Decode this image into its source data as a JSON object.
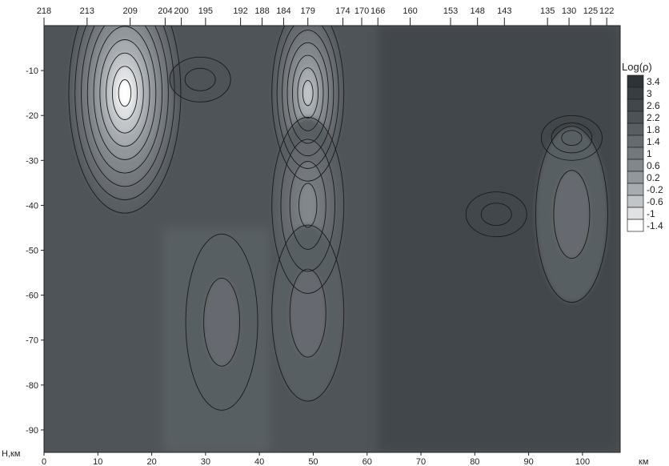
{
  "chart_data": {
    "type": "heatmap",
    "title": "",
    "xlabel": "км",
    "ylabel": "H,км",
    "xlim": [
      0,
      107
    ],
    "ylim": [
      -95,
      0
    ],
    "x_ticks": [
      0,
      10,
      20,
      30,
      40,
      50,
      60,
      70,
      80,
      90,
      100
    ],
    "y_ticks": [
      -10,
      -20,
      -30,
      -40,
      -50,
      -60,
      -70,
      -80,
      -90
    ],
    "top_axis_labels": [
      {
        "label": "218",
        "x": 0
      },
      {
        "label": "213",
        "x": 8
      },
      {
        "label": "209",
        "x": 16
      },
      {
        "label": "204",
        "x": 22.5
      },
      {
        "label": "200",
        "x": 25.5
      },
      {
        "label": "195",
        "x": 30
      },
      {
        "label": "192",
        "x": 36.5
      },
      {
        "label": "188",
        "x": 40.5
      },
      {
        "label": "184",
        "x": 44.5
      },
      {
        "label": "179",
        "x": 49
      },
      {
        "label": "174",
        "x": 55.5
      },
      {
        "label": "170",
        "x": 59
      },
      {
        "label": "166",
        "x": 62
      },
      {
        "label": "160",
        "x": 68
      },
      {
        "label": "153",
        "x": 75.5
      },
      {
        "label": "148",
        "x": 80.5
      },
      {
        "label": "143",
        "x": 85.5
      },
      {
        "label": "135",
        "x": 93.5
      },
      {
        "label": "130",
        "x": 97.5
      },
      {
        "label": "125",
        "x": 101.5
      },
      {
        "label": "122",
        "x": 104.5
      }
    ],
    "legend": {
      "title": "Log(ρ)",
      "levels": [
        "3.4",
        "3",
        "2.6",
        "2.2",
        "1.8",
        "1.4",
        "1",
        "0.6",
        "0.2",
        "-0.2",
        "-0.6",
        "-1",
        "-1.4"
      ],
      "colors": [
        "#2e3337",
        "#383d41",
        "#42474b",
        "#4d5256",
        "#595e62",
        "#666b6f",
        "#73787c",
        "#82878b",
        "#92979b",
        "#a7acb0",
        "#c1c5c8",
        "#dfe1e3",
        "#ffffff"
      ],
      "position": "right"
    },
    "anomalies": [
      {
        "x": 15,
        "depth": -15,
        "logrho": -1.4
      },
      {
        "x": 49,
        "depth": -15,
        "logrho": -0.6
      },
      {
        "x": 49,
        "depth": -40,
        "logrho": 0.6
      },
      {
        "x": 29,
        "depth": -12,
        "logrho": 2.2
      },
      {
        "x": 33,
        "depth": -66,
        "logrho": 1.4
      },
      {
        "x": 49,
        "depth": -64,
        "logrho": 1.4
      },
      {
        "x": 84,
        "depth": -42,
        "logrho": 2.6
      },
      {
        "x": 98,
        "depth": -25,
        "logrho": 3.4
      },
      {
        "x": 98,
        "depth": -42,
        "logrho": 1.4
      }
    ]
  }
}
